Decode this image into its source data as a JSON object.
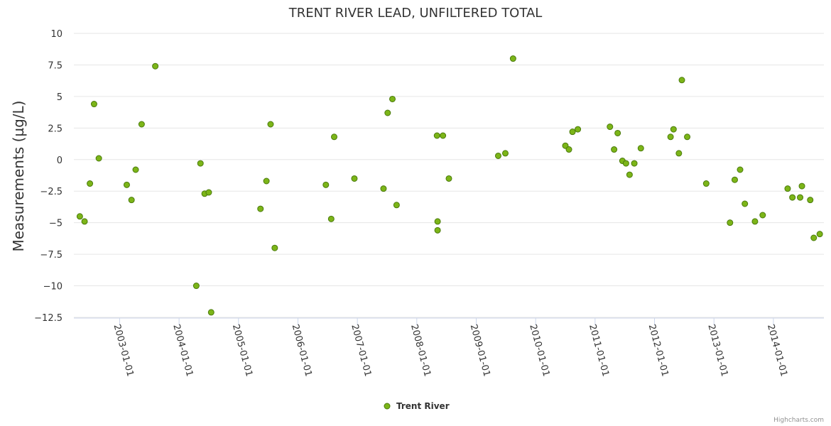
{
  "chart_data": {
    "type": "scatter",
    "title": "TRENT RIVER LEAD, UNFILTERED TOTAL",
    "xlabel": "",
    "ylabel": "Measurements (µg/L)",
    "ylim": [
      -12.5,
      10
    ],
    "yticks": [
      10,
      7.5,
      5,
      2.5,
      0,
      -2.5,
      -5,
      -7.5,
      -10,
      -12.5
    ],
    "ytick_labels": [
      "10",
      "7.5",
      "5",
      "2.5",
      "0",
      "−2.5",
      "−5",
      "−7.5",
      "−10",
      "−12.5"
    ],
    "xlim": [
      2002.23,
      2014.85
    ],
    "xticks": [
      2003,
      2004,
      2005,
      2006,
      2007,
      2008,
      2009,
      2010,
      2011,
      2012,
      2013,
      2014
    ],
    "xtick_labels": [
      "2003-01-01",
      "2004-01-01",
      "2005-01-01",
      "2006-01-01",
      "2007-01-01",
      "2008-01-01",
      "2009-01-01",
      "2010-01-01",
      "2011-01-01",
      "2012-01-01",
      "2013-01-01",
      "2014-01-01"
    ],
    "series": [
      {
        "name": "Trent River",
        "color": "#7cb518",
        "x": [
          2002.33,
          2002.41,
          2002.5,
          2002.57,
          2002.65,
          2003.12,
          2003.2,
          2003.27,
          2003.37,
          2003.6,
          2004.29,
          2004.36,
          2004.43,
          2004.5,
          2004.54,
          2005.37,
          2005.47,
          2005.54,
          2005.61,
          2006.47,
          2006.56,
          2006.61,
          2006.95,
          2007.44,
          2007.51,
          2007.59,
          2007.66,
          2008.34,
          2008.35,
          2008.35,
          2008.44,
          2008.54,
          2009.37,
          2009.49,
          2009.62,
          2010.5,
          2010.56,
          2010.62,
          2010.71,
          2011.25,
          2011.32,
          2011.38,
          2011.46,
          2011.52,
          2011.58,
          2011.66,
          2011.77,
          2012.27,
          2012.32,
          2012.41,
          2012.46,
          2012.55,
          2012.87,
          2013.27,
          2013.35,
          2013.44,
          2013.52,
          2013.69,
          2013.82,
          2014.24,
          2014.32,
          2014.45,
          2014.48,
          2014.62,
          2014.68,
          2014.78
        ],
        "y": [
          -4.5,
          -4.9,
          -1.9,
          4.4,
          0.1,
          -2.0,
          -3.2,
          -0.8,
          2.8,
          7.4,
          -10.0,
          -0.3,
          -2.7,
          -2.6,
          -12.1,
          -3.9,
          -1.7,
          2.8,
          -7.0,
          -2.0,
          -4.7,
          1.8,
          -1.5,
          -2.3,
          3.7,
          4.8,
          -3.6,
          1.9,
          -4.9,
          -5.6,
          1.9,
          -1.5,
          0.3,
          0.5,
          8.0,
          1.1,
          0.8,
          2.2,
          2.4,
          2.6,
          0.8,
          2.1,
          -0.1,
          -0.3,
          -1.2,
          -0.3,
          0.9,
          1.8,
          2.4,
          0.5,
          6.3,
          1.8,
          -1.9,
          -5.0,
          -1.6,
          -0.8,
          -3.5,
          -4.9,
          -4.4,
          -2.3,
          -3.0,
          -3.0,
          -2.1,
          -3.2,
          -6.2,
          -5.9
        ]
      }
    ],
    "legend": "bottom-center",
    "grid": true
  },
  "credits": "Highcharts.com"
}
